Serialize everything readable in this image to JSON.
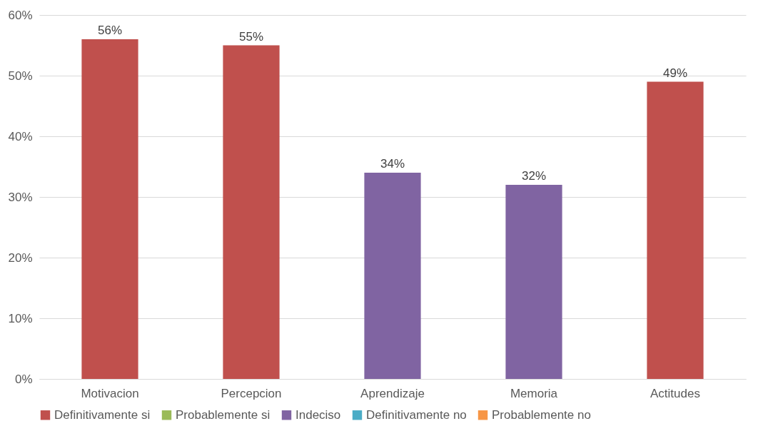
{
  "chart_data": {
    "type": "bar",
    "categories": [
      "Motivacion",
      "Percepcion",
      "Aprendizaje",
      "Memoria",
      "Actitudes"
    ],
    "series": [
      {
        "name": "Definitivamente si",
        "color": "#c0504d",
        "values": [
          56,
          55,
          null,
          null,
          49
        ],
        "value_labels": [
          "56%",
          "55%",
          null,
          null,
          "49%"
        ]
      },
      {
        "name": "Probablemente si",
        "color": "#9bbb59",
        "values": [
          null,
          null,
          null,
          null,
          null
        ]
      },
      {
        "name": "Indeciso",
        "color": "#8064a2",
        "values": [
          null,
          null,
          34,
          32,
          null
        ],
        "value_labels": [
          null,
          null,
          "34%",
          "32%",
          null
        ]
      },
      {
        "name": "Definitivamente no",
        "color": "#4bacc6",
        "values": [
          null,
          null,
          null,
          null,
          null
        ]
      },
      {
        "name": "Probablemente no",
        "color": "#f79646",
        "values": [
          null,
          null,
          null,
          null,
          null
        ]
      }
    ],
    "ylim": [
      0,
      60
    ],
    "yticks": [
      {
        "value": 0,
        "label": "0%"
      },
      {
        "value": 10,
        "label": "10%"
      },
      {
        "value": 20,
        "label": "20%"
      },
      {
        "value": 30,
        "label": "30%"
      },
      {
        "value": 40,
        "label": "40%"
      },
      {
        "value": 50,
        "label": "50%"
      },
      {
        "value": 60,
        "label": "60%"
      }
    ],
    "grid": "y",
    "legend": "bottom"
  }
}
